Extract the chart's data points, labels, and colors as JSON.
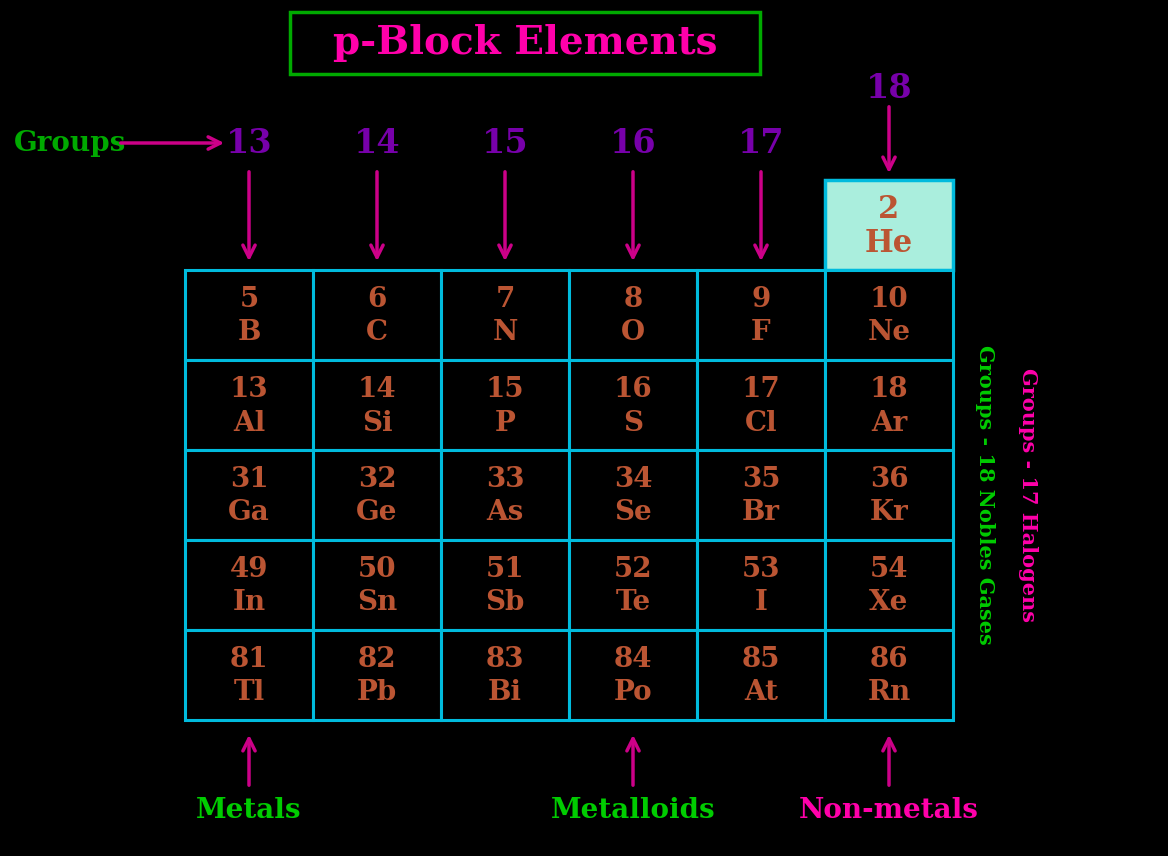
{
  "title": "p-Block Elements",
  "title_color": "#ff00aa",
  "title_border_color": "#00aa00",
  "background_color": "#000000",
  "groups_label": "Groups",
  "groups_label_color": "#00aa00",
  "group_numbers": [
    "13",
    "14",
    "15",
    "16",
    "17"
  ],
  "group_number_color": "#7700aa",
  "group_18_number": "18",
  "arrow_color": "#cc0088",
  "table_border_color": "#00bbdd",
  "element_number_color": "#bb5533",
  "element_symbol_color": "#bb5533",
  "he_bg_color": "#aaeedd",
  "cell_bg_color": "#000000",
  "elements": [
    [
      "5",
      "B",
      "6",
      "C",
      "7",
      "N",
      "8",
      "O",
      "9",
      "F",
      "10",
      "Ne"
    ],
    [
      "13",
      "Al",
      "14",
      "Si",
      "15",
      "P",
      "16",
      "S",
      "17",
      "Cl",
      "18",
      "Ar"
    ],
    [
      "31",
      "Ga",
      "32",
      "Ge",
      "33",
      "As",
      "34",
      "Se",
      "35",
      "Br",
      "36",
      "Kr"
    ],
    [
      "49",
      "In",
      "50",
      "Sn",
      "51",
      "Sb",
      "52",
      "Te",
      "53",
      "I",
      "54",
      "Xe"
    ],
    [
      "81",
      "Tl",
      "82",
      "Pb",
      "83",
      "Bi",
      "84",
      "Po",
      "85",
      "At",
      "86",
      "Rn"
    ]
  ],
  "he_num": "2",
  "he_sym": "He",
  "right_label_halogens": "Groups - 17 Halogens",
  "right_label_halogens_color": "#ff00aa",
  "right_label_nobles": "Groups - 18 Nobles Gases",
  "right_label_nobles_color": "#00cc00",
  "metals_text": "Metals",
  "metals_color": "#00cc00",
  "metalloids_text": "Metalloids",
  "metalloids_color": "#00cc00",
  "nonmetals_text": "Non-metals",
  "nonmetals_color": "#ff00aa"
}
